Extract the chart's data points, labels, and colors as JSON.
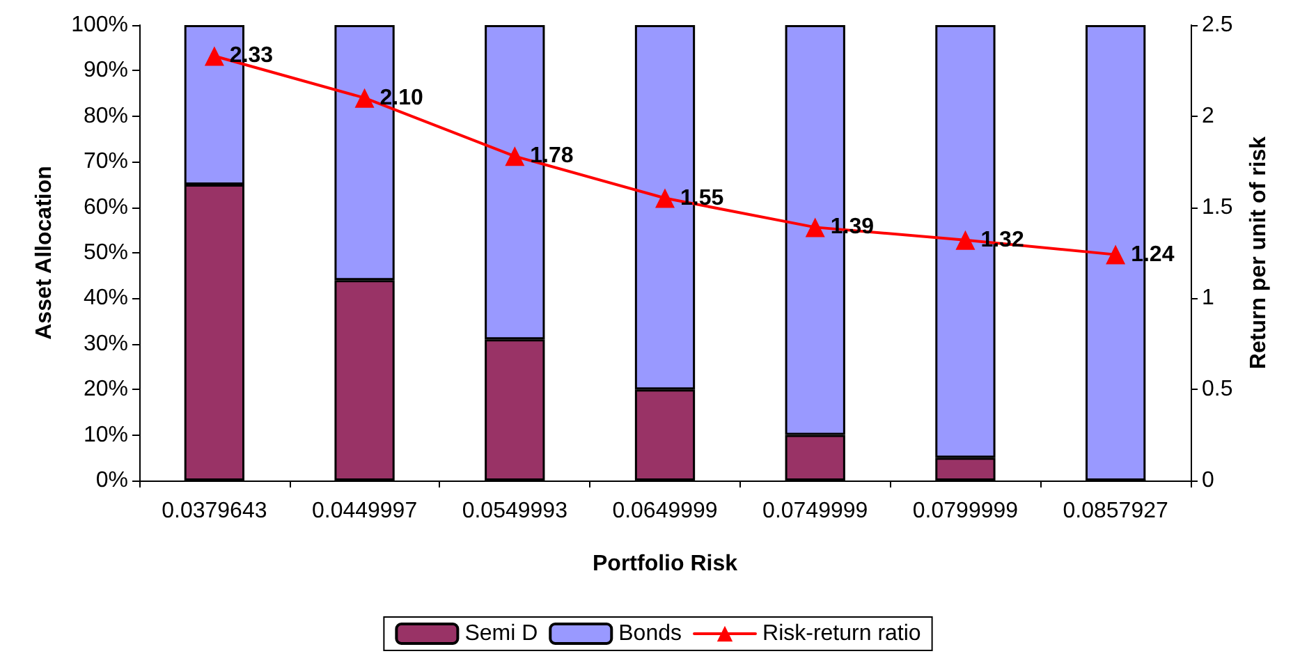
{
  "chart_data": {
    "type": "bar",
    "stacked": true,
    "xlabel": "Portfolio Risk",
    "ylabel": "Asset Allocation",
    "y2label": "Return per unit of risk",
    "categories": [
      "0.0379643",
      "0.0449997",
      "0.0549993",
      "0.0649999",
      "0.0749999",
      "0.0799999",
      "0.0857927"
    ],
    "series": [
      {
        "name": "Semi D",
        "color": "#993366",
        "values": [
          65,
          44,
          31,
          20,
          10,
          5,
          0
        ]
      },
      {
        "name": "Bonds",
        "color": "#9999ff",
        "values": [
          35,
          56,
          69,
          80,
          90,
          95,
          100
        ]
      },
      {
        "name": "Risk-return ratio",
        "type": "line",
        "axis": "y2",
        "color": "#ff0000",
        "marker": "triangle",
        "values": [
          2.33,
          2.1,
          1.78,
          1.55,
          1.39,
          1.32,
          1.24
        ],
        "value_labels": [
          "2.33",
          "2.10",
          "1.78",
          "1.55",
          "1.39",
          "1.32",
          "1.24"
        ]
      }
    ],
    "ylim": [
      0,
      100
    ],
    "yticks": [
      {
        "value": 0,
        "label": "0%"
      },
      {
        "value": 10,
        "label": "10%"
      },
      {
        "value": 20,
        "label": "20%"
      },
      {
        "value": 30,
        "label": "30%"
      },
      {
        "value": 40,
        "label": "40%"
      },
      {
        "value": 50,
        "label": "50%"
      },
      {
        "value": 60,
        "label": "60%"
      },
      {
        "value": 70,
        "label": "70%"
      },
      {
        "value": 80,
        "label": "80%"
      },
      {
        "value": 90,
        "label": "90%"
      },
      {
        "value": 100,
        "label": "100%"
      }
    ],
    "y2lim": [
      0,
      2.5
    ],
    "y2ticks": [
      0,
      0.5,
      1,
      1.5,
      2,
      2.5
    ],
    "legend": "bottom",
    "grid": false
  }
}
